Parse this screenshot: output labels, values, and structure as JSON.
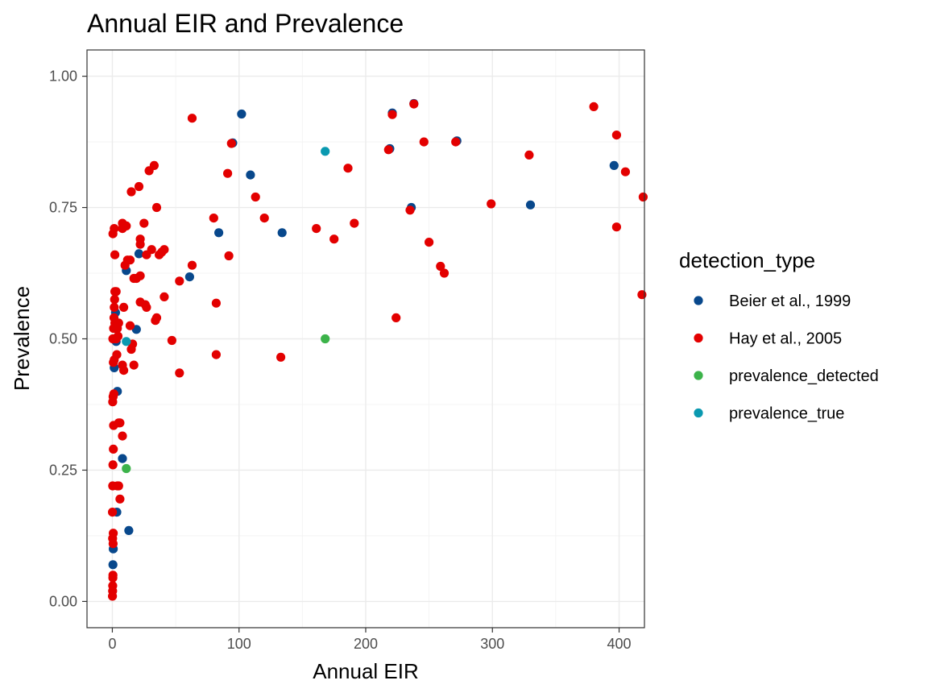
{
  "chart_data": {
    "type": "scatter",
    "title": "Annual EIR and Prevalence",
    "xlabel": "Annual EIR",
    "ylabel": "Prevalence",
    "xlim": [
      -20,
      420
    ],
    "ylim": [
      -0.05,
      1.05
    ],
    "x_ticks": [
      0,
      100,
      200,
      300,
      400
    ],
    "x_tick_labels": [
      "0",
      "100",
      "200",
      "300",
      "400"
    ],
    "y_ticks": [
      0,
      0.25,
      0.5,
      0.75,
      1
    ],
    "y_tick_labels": [
      "0.00",
      "0.25",
      "0.50",
      "0.75",
      "1.00"
    ],
    "grid": true,
    "legend": {
      "title": "detection_type",
      "position": "right"
    },
    "series": [
      {
        "name": "Beier et al., 1999",
        "color": "#08488c",
        "points": [
          [
            0.5,
            0.07
          ],
          [
            0.7,
            0.1
          ],
          [
            1.5,
            0.445
          ],
          [
            2,
            0.52
          ],
          [
            2.5,
            0.55
          ],
          [
            3,
            0.495
          ],
          [
            3.5,
            0.17
          ],
          [
            4,
            0.4
          ],
          [
            8,
            0.272
          ],
          [
            11,
            0.63
          ],
          [
            13,
            0.135
          ],
          [
            19,
            0.518
          ],
          [
            21,
            0.662
          ],
          [
            61,
            0.618
          ],
          [
            84,
            0.702
          ],
          [
            95,
            0.873
          ],
          [
            102,
            0.928
          ],
          [
            109,
            0.812
          ],
          [
            134,
            0.702
          ],
          [
            219,
            0.862
          ],
          [
            221,
            0.93
          ],
          [
            236,
            0.75
          ],
          [
            238,
            0.948
          ],
          [
            272,
            0.877
          ],
          [
            330,
            0.755
          ],
          [
            396,
            0.83
          ]
        ]
      },
      {
        "name": "Hay et al., 2005",
        "color": "#e30000",
        "points": [
          [
            0.1,
            0.01
          ],
          [
            0.2,
            0.02
          ],
          [
            0.3,
            0.03
          ],
          [
            0.4,
            0.045
          ],
          [
            0.5,
            0.05
          ],
          [
            0.6,
            0.11
          ],
          [
            0.7,
            0.13
          ],
          [
            0.2,
            0.12
          ],
          [
            0.1,
            0.17
          ],
          [
            0.3,
            0.22
          ],
          [
            0.5,
            0.26
          ],
          [
            0.8,
            0.29
          ],
          [
            1,
            0.335
          ],
          [
            0.3,
            0.38
          ],
          [
            0.6,
            0.39
          ],
          [
            1.2,
            0.395
          ],
          [
            0.8,
            0.455
          ],
          [
            1.5,
            0.46
          ],
          [
            0.4,
            0.5
          ],
          [
            1,
            0.52
          ],
          [
            2,
            0.53
          ],
          [
            1.3,
            0.54
          ],
          [
            1.5,
            0.56
          ],
          [
            1.8,
            0.575
          ],
          [
            2,
            0.59
          ],
          [
            3,
            0.59
          ],
          [
            0.5,
            0.7
          ],
          [
            2,
            0.66
          ],
          [
            1.5,
            0.71
          ],
          [
            3,
            0.5
          ],
          [
            3.5,
            0.47
          ],
          [
            4,
            0.52
          ],
          [
            4.5,
            0.505
          ],
          [
            5,
            0.53
          ],
          [
            4,
            0.22
          ],
          [
            5,
            0.22
          ],
          [
            5,
            0.34
          ],
          [
            6,
            0.34
          ],
          [
            6,
            0.195
          ],
          [
            8,
            0.315
          ],
          [
            8,
            0.45
          ],
          [
            9,
            0.44
          ],
          [
            9,
            0.56
          ],
          [
            8,
            0.71
          ],
          [
            8,
            0.72
          ],
          [
            10,
            0.715
          ],
          [
            11,
            0.715
          ],
          [
            10,
            0.64
          ],
          [
            12,
            0.65
          ],
          [
            14,
            0.65
          ],
          [
            14,
            0.525
          ],
          [
            15,
            0.48
          ],
          [
            16,
            0.49
          ],
          [
            17,
            0.45
          ],
          [
            15,
            0.78
          ],
          [
            17,
            0.615
          ],
          [
            19,
            0.615
          ],
          [
            21,
            0.79
          ],
          [
            22,
            0.57
          ],
          [
            22,
            0.62
          ],
          [
            22,
            0.68
          ],
          [
            22,
            0.69
          ],
          [
            25,
            0.72
          ],
          [
            26,
            0.565
          ],
          [
            27,
            0.56
          ],
          [
            27,
            0.66
          ],
          [
            29,
            0.82
          ],
          [
            31,
            0.67
          ],
          [
            33,
            0.83
          ],
          [
            34,
            0.535
          ],
          [
            35,
            0.54
          ],
          [
            35,
            0.75
          ],
          [
            37,
            0.66
          ],
          [
            39,
            0.665
          ],
          [
            41,
            0.58
          ],
          [
            41,
            0.67
          ],
          [
            47,
            0.497
          ],
          [
            53,
            0.435
          ],
          [
            53,
            0.61
          ],
          [
            63,
            0.92
          ],
          [
            63,
            0.64
          ],
          [
            80,
            0.73
          ],
          [
            82,
            0.568
          ],
          [
            82,
            0.47
          ],
          [
            91,
            0.815
          ],
          [
            92,
            0.658
          ],
          [
            94,
            0.872
          ],
          [
            113,
            0.77
          ],
          [
            120,
            0.73
          ],
          [
            133,
            0.465
          ],
          [
            161,
            0.71
          ],
          [
            175,
            0.69
          ],
          [
            186,
            0.825
          ],
          [
            191,
            0.72
          ],
          [
            218,
            0.86
          ],
          [
            221,
            0.927
          ],
          [
            224,
            0.54
          ],
          [
            235,
            0.745
          ],
          [
            238,
            0.947
          ],
          [
            246,
            0.875
          ],
          [
            250,
            0.684
          ],
          [
            259,
            0.638
          ],
          [
            262,
            0.625
          ],
          [
            271,
            0.875
          ],
          [
            299,
            0.757
          ],
          [
            329,
            0.85
          ],
          [
            380,
            0.942
          ],
          [
            398,
            0.888
          ],
          [
            398,
            0.713
          ],
          [
            405,
            0.818
          ],
          [
            419,
            0.77
          ],
          [
            418,
            0.584
          ]
        ]
      },
      {
        "name": "prevalence_detected",
        "color": "#3cb34a",
        "points": [
          [
            11,
            0.253
          ],
          [
            168,
            0.5
          ]
        ]
      },
      {
        "name": "prevalence_true",
        "color": "#0a99b0",
        "points": [
          [
            11,
            0.495
          ],
          [
            168,
            0.857
          ]
        ]
      }
    ]
  }
}
